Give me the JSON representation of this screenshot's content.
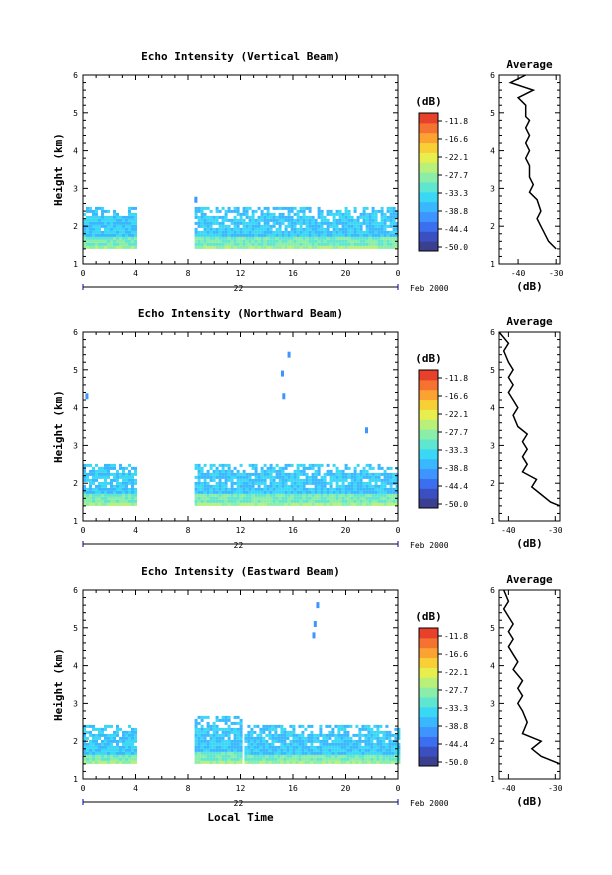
{
  "colors": {
    "scale": [
      "#3b3f8f",
      "#3a50c0",
      "#3c6ff0",
      "#3f95ff",
      "#39b8ff",
      "#3ad8f5",
      "#5fe6d0",
      "#8aeea8",
      "#b9f07a",
      "#e7ee4e",
      "#f8cf35",
      "#fba233",
      "#f57231",
      "#e8412b"
    ]
  },
  "chart_data": [
    {
      "type": "heatmap",
      "title": "Echo Intensity (Vertical Beam)",
      "ylabel": "Height (km)",
      "xlabel": "",
      "xticks": [
        "0",
        "4",
        "8",
        "12",
        "16",
        "20",
        "0"
      ],
      "yticks": [
        "1",
        "2",
        "3",
        "4",
        "5",
        "6"
      ],
      "xlim": [
        0,
        24
      ],
      "ylim": [
        1,
        6
      ],
      "date_center": "22",
      "date_right": "Feb 2000",
      "colorbar": {
        "label": "(dB)",
        "ticks": [
          "-11.8",
          "-16.6",
          "-22.1",
          "-27.7",
          "-33.3",
          "-38.8",
          "-44.4",
          "-50.0"
        ]
      },
      "echo_blocks": [
        {
          "t0": 0,
          "t1": 4,
          "hmin": 1.4,
          "hmax": 2.5
        },
        {
          "t0": 8.5,
          "t1": 24,
          "hmin": 1.4,
          "hmax": 2.5
        }
      ],
      "spots": [
        {
          "t": 8.6,
          "h": 2.7
        }
      ],
      "profile": {
        "title": "Average",
        "xlabel": "(dB)",
        "xticks": [
          "-40",
          "-30"
        ],
        "xlim": [
          -45,
          -29
        ],
        "yticks": [
          "1",
          "2",
          "3",
          "4",
          "5",
          "6"
        ],
        "points": [
          [
            -30,
            1.4
          ],
          [
            -31,
            1.5
          ],
          [
            -32,
            1.6
          ],
          [
            -33,
            1.8
          ],
          [
            -34,
            2.0
          ],
          [
            -35,
            2.2
          ],
          [
            -34,
            2.4
          ],
          [
            -35,
            2.7
          ],
          [
            -37,
            2.9
          ],
          [
            -36,
            3.1
          ],
          [
            -37,
            3.3
          ],
          [
            -37,
            3.6
          ],
          [
            -38,
            3.8
          ],
          [
            -37,
            4.0
          ],
          [
            -38,
            4.2
          ],
          [
            -37,
            4.4
          ],
          [
            -38,
            4.6
          ],
          [
            -37,
            4.8
          ],
          [
            -38,
            4.9
          ],
          [
            -38,
            5.2
          ],
          [
            -40,
            5.4
          ],
          [
            -36,
            5.6
          ],
          [
            -42,
            5.8
          ],
          [
            -38,
            6.0
          ]
        ]
      }
    },
    {
      "type": "heatmap",
      "title": "Echo Intensity (Northward Beam)",
      "ylabel": "Height (km)",
      "xlabel": "",
      "xticks": [
        "0",
        "4",
        "8",
        "12",
        "16",
        "20",
        "0"
      ],
      "yticks": [
        "1",
        "2",
        "3",
        "4",
        "5",
        "6"
      ],
      "xlim": [
        0,
        24
      ],
      "ylim": [
        1,
        6
      ],
      "date_center": "22",
      "date_right": "Feb 2000",
      "colorbar": {
        "label": "(dB)",
        "ticks": [
          "-11.8",
          "-16.6",
          "-22.1",
          "-27.7",
          "-33.3",
          "-38.8",
          "-44.4",
          "-50.0"
        ]
      },
      "echo_blocks": [
        {
          "t0": 0,
          "t1": 4,
          "hmin": 1.4,
          "hmax": 2.5
        },
        {
          "t0": 8.5,
          "t1": 24,
          "hmin": 1.4,
          "hmax": 2.5
        }
      ],
      "spots": [
        {
          "t": 0.3,
          "h": 4.3
        },
        {
          "t": 15.2,
          "h": 4.9
        },
        {
          "t": 15.3,
          "h": 4.3
        },
        {
          "t": 15.7,
          "h": 5.4
        },
        {
          "t": 21.6,
          "h": 3.4
        }
      ],
      "profile": {
        "title": "Average",
        "xlabel": "(dB)",
        "xticks": [
          "-40",
          "-30"
        ],
        "xlim": [
          -42,
          -29
        ],
        "yticks": [
          "1",
          "2",
          "3",
          "4",
          "5",
          "6"
        ],
        "points": [
          [
            -29,
            1.4
          ],
          [
            -31,
            1.5
          ],
          [
            -33,
            1.7
          ],
          [
            -35,
            1.9
          ],
          [
            -34,
            2.1
          ],
          [
            -37,
            2.3
          ],
          [
            -36,
            2.5
          ],
          [
            -37,
            2.7
          ],
          [
            -36,
            2.9
          ],
          [
            -37,
            3.1
          ],
          [
            -36,
            3.3
          ],
          [
            -38,
            3.5
          ],
          [
            -39,
            3.8
          ],
          [
            -38,
            4.0
          ],
          [
            -39,
            4.2
          ],
          [
            -40,
            4.4
          ],
          [
            -39,
            4.6
          ],
          [
            -40,
            4.8
          ],
          [
            -39,
            5.0
          ],
          [
            -40,
            5.2
          ],
          [
            -41,
            5.5
          ],
          [
            -40,
            5.7
          ],
          [
            -42,
            6.0
          ]
        ]
      }
    },
    {
      "type": "heatmap",
      "title": "Echo Intensity (Eastward Beam)",
      "ylabel": "Height (km)",
      "xlabel": "Local Time",
      "xticks": [
        "0",
        "4",
        "8",
        "12",
        "16",
        "20",
        "0"
      ],
      "yticks": [
        "1",
        "2",
        "3",
        "4",
        "5",
        "6"
      ],
      "xlim": [
        0,
        24
      ],
      "ylim": [
        1,
        6
      ],
      "date_center": "22",
      "date_right": "Feb 2000",
      "colorbar": {
        "label": "(dB)",
        "ticks": [
          "-11.8",
          "-16.6",
          "-22.1",
          "-27.7",
          "-33.3",
          "-38.8",
          "-44.4",
          "-50.0"
        ]
      },
      "echo_blocks": [
        {
          "t0": 0,
          "t1": 4,
          "hmin": 1.4,
          "hmax": 2.4
        },
        {
          "t0": 8.5,
          "t1": 12,
          "hmin": 1.4,
          "hmax": 2.6
        },
        {
          "t0": 12.3,
          "t1": 24,
          "hmin": 1.4,
          "hmax": 2.4
        }
      ],
      "spots": [
        {
          "t": 17.6,
          "h": 4.8
        },
        {
          "t": 17.7,
          "h": 5.1
        },
        {
          "t": 17.9,
          "h": 5.6
        }
      ],
      "profile": {
        "title": "Average",
        "xlabel": "(dB)",
        "xticks": [
          "-40",
          "-30"
        ],
        "xlim": [
          -42,
          -29
        ],
        "yticks": [
          "1",
          "2",
          "3",
          "4",
          "5",
          "6"
        ],
        "points": [
          [
            -29,
            1.4
          ],
          [
            -33,
            1.6
          ],
          [
            -35,
            1.8
          ],
          [
            -33,
            2.0
          ],
          [
            -37,
            2.2
          ],
          [
            -36,
            2.5
          ],
          [
            -37,
            2.8
          ],
          [
            -38,
            3.0
          ],
          [
            -37,
            3.2
          ],
          [
            -38,
            3.4
          ],
          [
            -37,
            3.6
          ],
          [
            -39,
            3.9
          ],
          [
            -38,
            4.1
          ],
          [
            -39,
            4.3
          ],
          [
            -40,
            4.5
          ],
          [
            -39,
            4.7
          ],
          [
            -40,
            4.9
          ],
          [
            -39,
            5.1
          ],
          [
            -40,
            5.3
          ],
          [
            -41,
            5.5
          ],
          [
            -40,
            5.7
          ],
          [
            -41,
            6.0
          ]
        ]
      }
    }
  ]
}
